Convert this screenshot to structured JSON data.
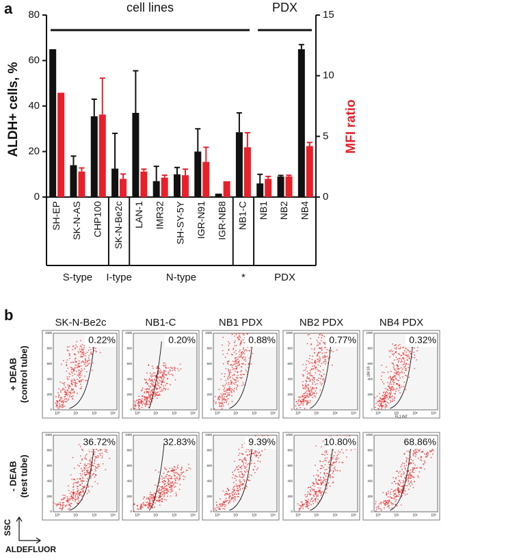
{
  "chart_data": {
    "type": "bar",
    "panel_label": "a",
    "y_label": "ALDH+ cells, %",
    "y2_label": "MFI ratio",
    "categories": [
      "SH-EP",
      "SK-N-AS",
      "CHP100",
      "SK-N-Be2c",
      "LAN-1",
      "IMR32",
      "SH-SY-5Y",
      "IGR-N91",
      "IGR-NB8",
      "NB1-C",
      "NB1",
      "NB2",
      "NB4"
    ],
    "series": [
      {
        "color": "#111111",
        "values": [
          65,
          14,
          35.5,
          12.5,
          37,
          7,
          10,
          20,
          1.5,
          28.5,
          6,
          9,
          65
        ],
        "errors": [
          0,
          4,
          7.5,
          15.5,
          18.5,
          6.5,
          3,
          10,
          0,
          8.5,
          4,
          0.5,
          2
        ]
      },
      {
        "color": "#e8202a",
        "axis": "y2",
        "values": [
          8.6,
          2.1,
          6.8,
          1.5,
          2.1,
          1.6,
          1.8,
          2.9,
          1.3,
          4.1,
          1.5,
          1.7,
          4.2
        ],
        "errors": [
          0,
          0.3,
          3,
          0.4,
          0.2,
          0.2,
          0.5,
          1.2,
          0,
          1.2,
          0.2,
          0.1,
          0.3
        ]
      }
    ],
    "ylim": [
      0,
      80
    ],
    "yticks": [
      0,
      20,
      40,
      60,
      80
    ],
    "y2lim": [
      0,
      15
    ],
    "y2ticks": [
      0,
      5,
      10,
      15
    ],
    "group_headers": [
      "cell lines",
      "PDX"
    ],
    "groups": [
      "S-type",
      "I-type",
      "N-type",
      "*",
      "PDX"
    ]
  },
  "panel_b": {
    "panel_label": "b",
    "columns": [
      "SK-N-Be2c",
      "NB1-C",
      "NB1 PDX",
      "NB2 PDX",
      "NB4 PDX"
    ],
    "rows": [
      [
        "+ DEAB",
        "(control tube)"
      ],
      [
        "- DEAB",
        "(test tube)"
      ]
    ],
    "percentages": [
      [
        "0.22%",
        "0.20%",
        "0.88%",
        "0.77%",
        "0.32%"
      ],
      [
        "36.72%",
        "32.83%",
        "9.39%",
        "10.80%",
        "68.86%"
      ]
    ],
    "y_ticks": [
      "1000",
      "800",
      "600",
      "400",
      "200",
      "0"
    ],
    "x_ticks": [
      "10⁰",
      "10¹",
      "10²",
      "10³"
    ],
    "y_axis_label": "SSC",
    "x_axis_label": "ALDEFLUOR",
    "inner_y_label": "SS INT",
    "inner_x_label": "FL1 INT"
  }
}
